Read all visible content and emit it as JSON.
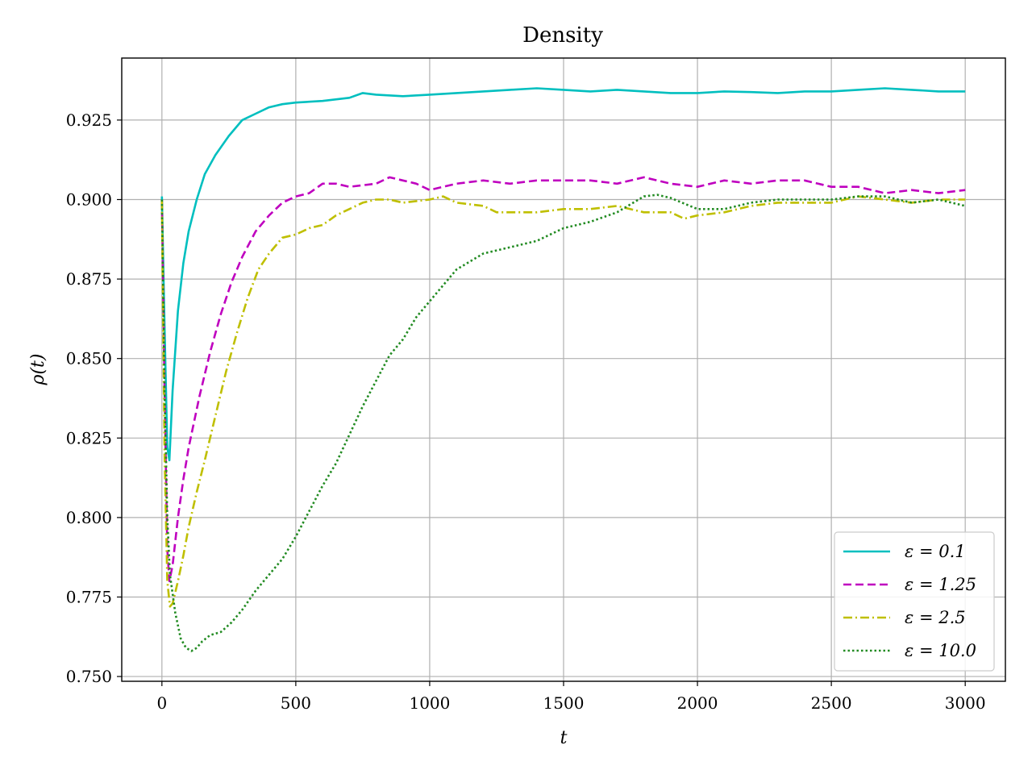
{
  "chart_data": {
    "type": "line",
    "title": "Density",
    "xlabel": "t",
    "ylabel": "ρ(t)",
    "xlim": [
      -150,
      3150
    ],
    "ylim": [
      0.7485,
      0.9445
    ],
    "xticks": [
      0,
      500,
      1000,
      1500,
      2000,
      2500,
      3000
    ],
    "xtick_labels": [
      "0",
      "500",
      "1000",
      "1500",
      "2000",
      "2500",
      "3000"
    ],
    "yticks": [
      0.75,
      0.775,
      0.8,
      0.825,
      0.85,
      0.875,
      0.9,
      0.925
    ],
    "ytick_labels": [
      "0.750",
      "0.775",
      "0.800",
      "0.825",
      "0.850",
      "0.875",
      "0.900",
      "0.925"
    ],
    "grid": true,
    "legend_position": "bottom-right",
    "series": [
      {
        "name": "ε = 0.1",
        "color": "#00bfbf",
        "style": "solid",
        "points": [
          [
            0,
            0.901
          ],
          [
            10,
            0.86
          ],
          [
            20,
            0.822
          ],
          [
            28,
            0.818
          ],
          [
            40,
            0.84
          ],
          [
            60,
            0.865
          ],
          [
            80,
            0.88
          ],
          [
            100,
            0.89
          ],
          [
            130,
            0.9
          ],
          [
            160,
            0.908
          ],
          [
            200,
            0.914
          ],
          [
            250,
            0.92
          ],
          [
            300,
            0.925
          ],
          [
            350,
            0.927
          ],
          [
            400,
            0.929
          ],
          [
            450,
            0.93
          ],
          [
            500,
            0.9305
          ],
          [
            600,
            0.931
          ],
          [
            700,
            0.932
          ],
          [
            750,
            0.9335
          ],
          [
            800,
            0.933
          ],
          [
            900,
            0.9325
          ],
          [
            1000,
            0.933
          ],
          [
            1100,
            0.9335
          ],
          [
            1200,
            0.934
          ],
          [
            1300,
            0.9345
          ],
          [
            1400,
            0.935
          ],
          [
            1500,
            0.9345
          ],
          [
            1600,
            0.934
          ],
          [
            1700,
            0.9345
          ],
          [
            1800,
            0.934
          ],
          [
            1900,
            0.9335
          ],
          [
            2000,
            0.9335
          ],
          [
            2100,
            0.934
          ],
          [
            2200,
            0.9338
          ],
          [
            2300,
            0.9335
          ],
          [
            2400,
            0.934
          ],
          [
            2500,
            0.934
          ],
          [
            2600,
            0.9345
          ],
          [
            2700,
            0.935
          ],
          [
            2800,
            0.9345
          ],
          [
            2900,
            0.934
          ],
          [
            3000,
            0.934
          ]
        ]
      },
      {
        "name": "ε = 1.25",
        "color": "#bf00bf",
        "style": "dashed",
        "points": [
          [
            0,
            0.9
          ],
          [
            10,
            0.84
          ],
          [
            20,
            0.79
          ],
          [
            28,
            0.78
          ],
          [
            40,
            0.785
          ],
          [
            60,
            0.8
          ],
          [
            80,
            0.812
          ],
          [
            100,
            0.822
          ],
          [
            140,
            0.838
          ],
          [
            180,
            0.852
          ],
          [
            220,
            0.864
          ],
          [
            260,
            0.874
          ],
          [
            300,
            0.882
          ],
          [
            350,
            0.89
          ],
          [
            400,
            0.895
          ],
          [
            450,
            0.899
          ],
          [
            500,
            0.901
          ],
          [
            550,
            0.902
          ],
          [
            600,
            0.905
          ],
          [
            650,
            0.905
          ],
          [
            700,
            0.904
          ],
          [
            800,
            0.905
          ],
          [
            850,
            0.907
          ],
          [
            900,
            0.906
          ],
          [
            950,
            0.905
          ],
          [
            1000,
            0.903
          ],
          [
            1050,
            0.904
          ],
          [
            1100,
            0.905
          ],
          [
            1200,
            0.906
          ],
          [
            1300,
            0.905
          ],
          [
            1400,
            0.906
          ],
          [
            1500,
            0.906
          ],
          [
            1600,
            0.906
          ],
          [
            1700,
            0.905
          ],
          [
            1800,
            0.907
          ],
          [
            1850,
            0.906
          ],
          [
            1900,
            0.905
          ],
          [
            2000,
            0.904
          ],
          [
            2100,
            0.906
          ],
          [
            2200,
            0.905
          ],
          [
            2300,
            0.906
          ],
          [
            2400,
            0.906
          ],
          [
            2500,
            0.904
          ],
          [
            2600,
            0.904
          ],
          [
            2700,
            0.902
          ],
          [
            2800,
            0.903
          ],
          [
            2900,
            0.902
          ],
          [
            3000,
            0.903
          ]
        ]
      },
      {
        "name": "ε = 2.5",
        "color": "#bfbf00",
        "style": "dashdot",
        "points": [
          [
            0,
            0.9
          ],
          [
            10,
            0.82
          ],
          [
            20,
            0.78
          ],
          [
            30,
            0.772
          ],
          [
            40,
            0.773
          ],
          [
            60,
            0.78
          ],
          [
            80,
            0.788
          ],
          [
            100,
            0.797
          ],
          [
            130,
            0.808
          ],
          [
            160,
            0.818
          ],
          [
            200,
            0.832
          ],
          [
            240,
            0.846
          ],
          [
            280,
            0.858
          ],
          [
            320,
            0.869
          ],
          [
            360,
            0.878
          ],
          [
            400,
            0.883
          ],
          [
            450,
            0.888
          ],
          [
            500,
            0.889
          ],
          [
            550,
            0.891
          ],
          [
            600,
            0.892
          ],
          [
            650,
            0.895
          ],
          [
            700,
            0.897
          ],
          [
            750,
            0.899
          ],
          [
            800,
            0.9
          ],
          [
            850,
            0.9
          ],
          [
            900,
            0.899
          ],
          [
            1000,
            0.9
          ],
          [
            1050,
            0.901
          ],
          [
            1100,
            0.899
          ],
          [
            1200,
            0.898
          ],
          [
            1250,
            0.896
          ],
          [
            1300,
            0.896
          ],
          [
            1400,
            0.896
          ],
          [
            1500,
            0.897
          ],
          [
            1600,
            0.897
          ],
          [
            1700,
            0.898
          ],
          [
            1800,
            0.896
          ],
          [
            1900,
            0.896
          ],
          [
            1950,
            0.894
          ],
          [
            2000,
            0.895
          ],
          [
            2100,
            0.896
          ],
          [
            2200,
            0.898
          ],
          [
            2300,
            0.899
          ],
          [
            2400,
            0.899
          ],
          [
            2500,
            0.899
          ],
          [
            2600,
            0.901
          ],
          [
            2700,
            0.9
          ],
          [
            2800,
            0.899
          ],
          [
            2900,
            0.9
          ],
          [
            3000,
            0.9
          ]
        ]
      },
      {
        "name": "ε = 10.0",
        "color": "#228b22",
        "style": "dotted",
        "points": [
          [
            0,
            0.9
          ],
          [
            10,
            0.84
          ],
          [
            20,
            0.8
          ],
          [
            30,
            0.782
          ],
          [
            50,
            0.77
          ],
          [
            70,
            0.762
          ],
          [
            90,
            0.759
          ],
          [
            110,
            0.758
          ],
          [
            130,
            0.759
          ],
          [
            150,
            0.761
          ],
          [
            180,
            0.763
          ],
          [
            220,
            0.764
          ],
          [
            260,
            0.767
          ],
          [
            300,
            0.771
          ],
          [
            350,
            0.777
          ],
          [
            400,
            0.782
          ],
          [
            450,
            0.787
          ],
          [
            500,
            0.794
          ],
          [
            550,
            0.802
          ],
          [
            600,
            0.81
          ],
          [
            650,
            0.817
          ],
          [
            700,
            0.826
          ],
          [
            750,
            0.835
          ],
          [
            800,
            0.843
          ],
          [
            850,
            0.851
          ],
          [
            900,
            0.856
          ],
          [
            950,
            0.863
          ],
          [
            1000,
            0.868
          ],
          [
            1050,
            0.873
          ],
          [
            1100,
            0.878
          ],
          [
            1200,
            0.883
          ],
          [
            1300,
            0.885
          ],
          [
            1400,
            0.887
          ],
          [
            1500,
            0.891
          ],
          [
            1600,
            0.893
          ],
          [
            1700,
            0.896
          ],
          [
            1800,
            0.901
          ],
          [
            1850,
            0.9015
          ],
          [
            1900,
            0.9005
          ],
          [
            2000,
            0.897
          ],
          [
            2100,
            0.897
          ],
          [
            2200,
            0.899
          ],
          [
            2300,
            0.9
          ],
          [
            2400,
            0.9
          ],
          [
            2500,
            0.9
          ],
          [
            2600,
            0.901
          ],
          [
            2700,
            0.901
          ],
          [
            2800,
            0.899
          ],
          [
            2900,
            0.9
          ],
          [
            3000,
            0.898
          ]
        ]
      }
    ]
  }
}
